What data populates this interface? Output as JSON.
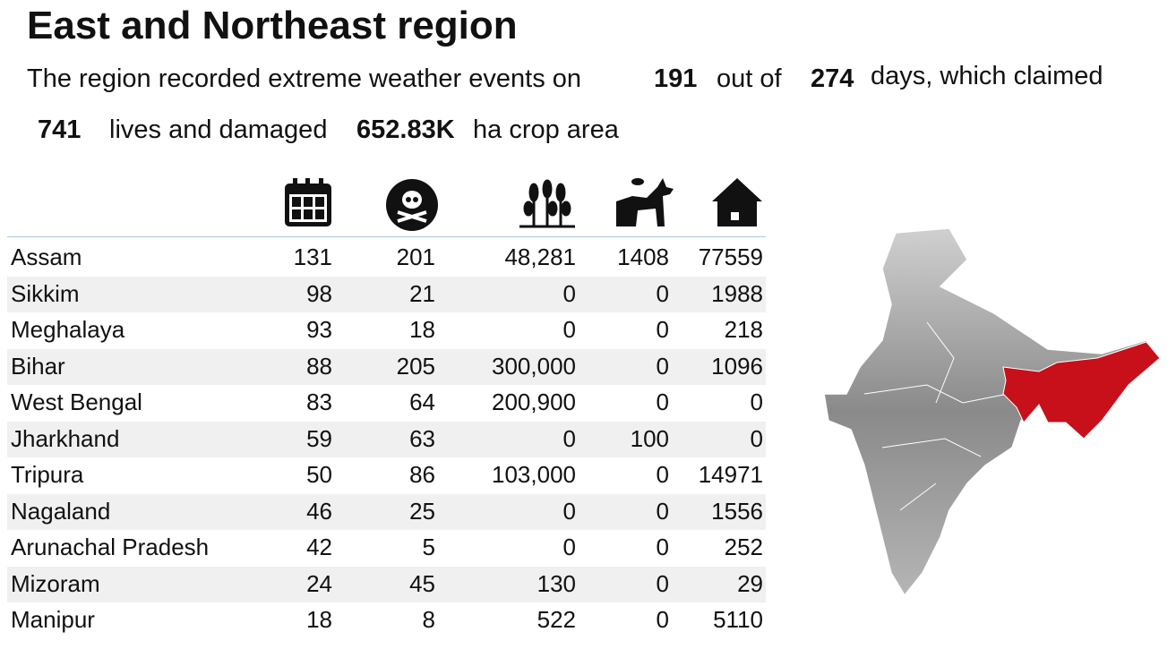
{
  "header": {
    "title": "East and Northeast region"
  },
  "summary": {
    "text_1": "The region recorded extreme weather events on",
    "event_days": "191",
    "text_2": "out of",
    "total_days": "274",
    "text_3": "days, which claimed",
    "lives": "741",
    "text_4": "lives and damaged",
    "crop_area": "652.83K",
    "text_5": "ha crop area"
  },
  "table": {
    "rows": [
      [
        "Assam",
        "131",
        "201",
        "48,281",
        "1408",
        "77559"
      ],
      [
        "Sikkim",
        "98",
        "21",
        "0",
        "0",
        "1988"
      ],
      [
        "Meghalaya",
        "93",
        "18",
        "0",
        "0",
        "218"
      ],
      [
        "Bihar",
        "88",
        "205",
        "300,000",
        "0",
        "1096"
      ],
      [
        "West Bengal",
        "83",
        "64",
        "200,900",
        "0",
        "0"
      ],
      [
        "Jharkhand",
        "59",
        "63",
        "0",
        "100",
        "0"
      ],
      [
        "Tripura",
        "50",
        "86",
        "103,000",
        "0",
        "14971"
      ],
      [
        "Nagaland",
        "46",
        "25",
        "0",
        "0",
        "1556"
      ],
      [
        "Arunachal Pradesh",
        "42",
        "5",
        "0",
        "0",
        "252"
      ],
      [
        "Mizoram",
        "24",
        "45",
        "130",
        "0",
        "29"
      ],
      [
        "Manipur",
        "18",
        "8",
        "522",
        "0",
        "5110"
      ]
    ]
  }
}
